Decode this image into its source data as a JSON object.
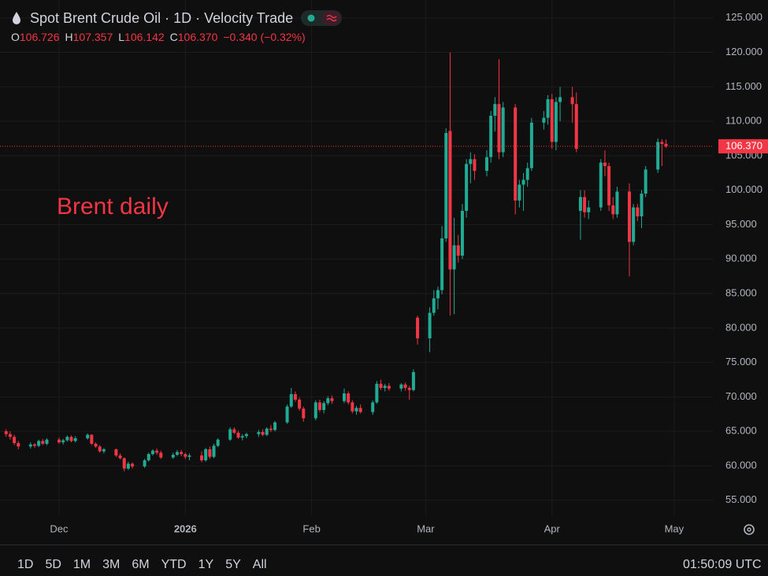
{
  "chart_data": {
    "type": "candlestick",
    "title": "Spot Brent Crude Oil · 1D · Velocity Trade",
    "ohlc": [
      {
        "key": "O",
        "value": "106.726"
      },
      {
        "key": "H",
        "value": "107.357"
      },
      {
        "key": "L",
        "value": "106.142"
      },
      {
        "key": "C",
        "value": "106.370"
      }
    ],
    "change": "−0.340 (−0.32%)",
    "last_price": "106.370",
    "annotation": "Brent daily",
    "up_color": "#22ab94",
    "down_color": "#f23645",
    "grid": true,
    "xlim": [
      -1.5,
      173.5
    ],
    "xticks": [
      {
        "value": 13,
        "label": "Dec"
      },
      {
        "value": 44,
        "label": "2026"
      },
      {
        "value": 75,
        "label": "Feb"
      },
      {
        "value": 103,
        "label": "Mar"
      },
      {
        "value": 134,
        "label": "Apr"
      },
      {
        "value": 164,
        "label": "May"
      }
    ],
    "ylim": [
      52.8,
      127.6
    ],
    "yticks": [
      {
        "value": 55,
        "label": "55.000"
      },
      {
        "value": 60,
        "label": "60.000"
      },
      {
        "value": 65,
        "label": "65.000"
      },
      {
        "value": 70,
        "label": "70.000"
      },
      {
        "value": 75,
        "label": "75.000"
      },
      {
        "value": 80,
        "label": "80.000"
      },
      {
        "value": 85,
        "label": "85.000"
      },
      {
        "value": 90,
        "label": "90.000"
      },
      {
        "value": 95,
        "label": "95.000"
      },
      {
        "value": 100,
        "label": "100.000"
      },
      {
        "value": 105,
        "label": "105.000"
      },
      {
        "value": 110,
        "label": "110.000"
      },
      {
        "value": 115,
        "label": "115.000"
      },
      {
        "value": 120,
        "label": "120.000"
      },
      {
        "value": 125,
        "label": "125.000"
      }
    ],
    "candles": {
      "x": [
        0,
        1,
        2,
        3,
        6,
        7,
        8,
        9,
        10,
        13,
        14,
        15,
        16,
        17,
        20,
        21,
        22,
        23,
        24,
        27,
        28,
        29,
        30,
        31,
        34,
        35,
        36,
        37,
        38,
        41,
        42,
        43,
        44,
        45,
        48,
        49,
        50,
        51,
        52,
        55,
        56,
        57,
        58,
        59,
        62,
        63,
        64,
        65,
        66,
        69,
        70,
        71,
        72,
        73,
        76,
        77,
        78,
        79,
        80,
        83,
        84,
        85,
        86,
        87,
        90,
        91,
        92,
        93,
        94,
        97,
        98,
        99,
        100,
        101,
        104,
        105,
        106,
        107,
        108,
        109,
        110,
        111,
        112,
        113,
        114,
        115,
        118,
        119,
        120,
        121,
        122,
        125,
        126,
        127,
        128,
        129,
        132,
        133,
        134,
        135,
        136,
        139,
        140,
        141,
        142,
        143,
        146,
        147,
        148,
        149,
        150,
        153,
        154,
        155,
        156,
        157,
        160,
        161,
        162
      ],
      "open": [
        65,
        64.6,
        64.2,
        63.3,
        62.8,
        63.1,
        62.9,
        63.6,
        63.2,
        63.8,
        63.4,
        63.7,
        64.2,
        63.6,
        64.0,
        64.5,
        63.2,
        62.8,
        62.1,
        62.4,
        61.5,
        61.1,
        59.6,
        60.3,
        59.9,
        60.8,
        61.7,
        62.2,
        61.9,
        61.2,
        61.6,
        62.0,
        61.7,
        61.3,
        61.5,
        60.8,
        62.4,
        61.3,
        62.9,
        63.8,
        65.3,
        64.8,
        64.1,
        64.3,
        64.6,
        64.9,
        64.5,
        65.4,
        65.2,
        66.3,
        68.6,
        70.4,
        69.6,
        68.3,
        66.9,
        69.2,
        68.1,
        69.1,
        69.8,
        69.4,
        70.5,
        69.2,
        67.9,
        68.4,
        67.8,
        69.2,
        71.9,
        71.3,
        71.6,
        71.2,
        71.8,
        71.3,
        71.0,
        81.5,
        78.5,
        82.2,
        84.3,
        85.5,
        93.0,
        108.6,
        88.5,
        92.0,
        90.5,
        97.0,
        103.8,
        104.5,
        102.8,
        104.8,
        110.8,
        112.5,
        105.5,
        112.0,
        98.5,
        100.8,
        101.5,
        103.2,
        109.8,
        110.5,
        113.2,
        107.0,
        112.8,
        113.5,
        112.5,
        97.0,
        99.0,
        96.8,
        97.5,
        104.0,
        103.5,
        97.8,
        96.5,
        99.8,
        92.5,
        97.5,
        96.2,
        99.5,
        103.0,
        107.0,
        106.726
      ],
      "high": [
        65.3,
        65.0,
        64.5,
        63.6,
        63.4,
        63.3,
        63.8,
        63.9,
        64.0,
        64.1,
        63.9,
        64.4,
        64.4,
        64.3,
        64.7,
        64.6,
        63.4,
        63.0,
        62.6,
        62.5,
        61.8,
        61.2,
        60.6,
        60.5,
        61.0,
        61.9,
        62.4,
        62.5,
        62.2,
        61.9,
        62.3,
        62.3,
        61.9,
        61.8,
        62.1,
        62.6,
        62.8,
        63.2,
        64.0,
        65.6,
        65.6,
        65.1,
        64.6,
        64.8,
        65.2,
        65.3,
        65.6,
        65.9,
        66.5,
        68.9,
        71.3,
        70.8,
        69.9,
        68.6,
        69.5,
        69.6,
        69.4,
        70.1,
        70.2,
        71.2,
        70.8,
        69.5,
        68.7,
        68.9,
        69.5,
        72.3,
        72.5,
        71.9,
        72.0,
        72.0,
        72.1,
        71.6,
        74.0,
        81.8,
        83.0,
        85.5,
        86.0,
        94.8,
        109.0,
        120.0,
        96.0,
        93.5,
        98.0,
        104.5,
        105.5,
        105.2,
        105.8,
        111.5,
        113.5,
        119.0,
        112.8,
        112.5,
        101.5,
        102.5,
        104.0,
        110.5,
        111.5,
        113.8,
        114.0,
        113.5,
        115.0,
        115.0,
        114.2,
        100.0,
        100.0,
        98.5,
        104.5,
        105.8,
        104.0,
        99.0,
        100.5,
        101.0,
        98.0,
        98.0,
        100.0,
        103.5,
        107.5,
        107.4,
        107.357
      ],
      "low": [
        64.2,
        63.8,
        63.0,
        62.4,
        62.5,
        62.6,
        62.7,
        63.0,
        63.0,
        63.2,
        63.1,
        63.5,
        63.4,
        63.4,
        63.8,
        63.0,
        62.6,
        61.9,
        61.8,
        61.3,
        60.9,
        59.2,
        59.4,
        59.6,
        59.7,
        60.6,
        61.5,
        61.6,
        61.0,
        61.0,
        61.4,
        61.4,
        61.0,
        60.8,
        60.5,
        60.6,
        61.0,
        61.1,
        62.7,
        63.6,
        64.6,
        63.9,
        63.7,
        64.0,
        64.2,
        64.3,
        64.3,
        64.9,
        65.0,
        66.1,
        68.4,
        69.3,
        68.0,
        66.4,
        66.6,
        67.8,
        67.6,
        68.8,
        69.0,
        69.1,
        68.9,
        67.6,
        67.4,
        67.6,
        67.4,
        69.0,
        71.0,
        70.8,
        70.9,
        70.8,
        70.9,
        69.6,
        70.8,
        77.6,
        76.5,
        81.8,
        82.7,
        84.9,
        92.5,
        81.8,
        82.0,
        89.5,
        90.0,
        96.0,
        101.0,
        101.5,
        102.0,
        104.0,
        108.5,
        104.5,
        104.8,
        96.5,
        97.5,
        97.0,
        100.5,
        102.8,
        108.8,
        109.5,
        106.0,
        105.8,
        110.0,
        109.8,
        105.5,
        92.8,
        96.0,
        95.8,
        97.0,
        102.0,
        97.0,
        95.8,
        96.0,
        87.5,
        92.0,
        95.5,
        94.5,
        99.0,
        102.5,
        103.5,
        106.142
      ],
      "close": [
        64.6,
        64.2,
        63.3,
        62.8,
        63.1,
        62.9,
        63.6,
        63.2,
        63.8,
        63.4,
        63.7,
        64.2,
        63.6,
        64.0,
        64.5,
        63.2,
        62.8,
        62.1,
        62.4,
        61.5,
        61.1,
        59.6,
        60.3,
        59.9,
        60.8,
        61.7,
        62.2,
        61.9,
        61.2,
        61.6,
        62.0,
        61.7,
        61.3,
        61.5,
        60.8,
        62.4,
        61.3,
        62.9,
        63.8,
        65.3,
        64.8,
        64.1,
        64.3,
        64.6,
        64.9,
        64.5,
        65.4,
        65.2,
        66.3,
        68.6,
        70.4,
        69.6,
        68.3,
        66.9,
        69.2,
        68.1,
        69.1,
        69.8,
        69.4,
        70.5,
        69.2,
        67.9,
        68.4,
        67.8,
        69.2,
        71.9,
        71.3,
        71.6,
        71.2,
        71.8,
        71.3,
        71.0,
        73.6,
        78.5,
        82.2,
        84.3,
        85.5,
        93.0,
        108.3,
        88.5,
        92.0,
        90.5,
        97.0,
        103.8,
        104.5,
        102.8,
        104.8,
        110.8,
        112.5,
        105.5,
        112.0,
        98.5,
        100.8,
        101.5,
        103.2,
        109.8,
        110.5,
        113.2,
        107.0,
        112.8,
        113.5,
        112.5,
        106.0,
        99.0,
        96.8,
        97.5,
        104.0,
        103.5,
        97.8,
        96.5,
        99.8,
        92.5,
        97.5,
        96.2,
        99.5,
        103.0,
        107.0,
        106.71,
        106.37
      ]
    }
  },
  "toolbar": {
    "ranges": [
      "1D",
      "5D",
      "1M",
      "3M",
      "6M",
      "YTD",
      "1Y",
      "5Y",
      "All"
    ],
    "clock": "01:50:09 UTC"
  }
}
